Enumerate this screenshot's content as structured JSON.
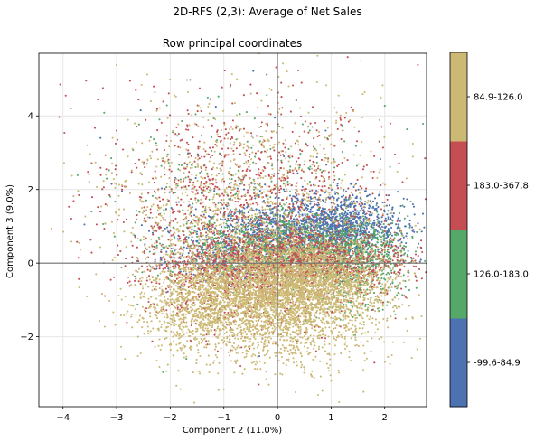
{
  "figure": {
    "suptitle": "2D-RFS (2,3): Average of Net Sales"
  },
  "chart_data": {
    "type": "scatter",
    "title": "Row principal coordinates",
    "xlabel": "Component 2 (11.0%)",
    "ylabel": "Component 3 (9.0%)",
    "xlim": [
      -4.45,
      2.78
    ],
    "ylim": [
      -3.9,
      5.7
    ],
    "xticks": [
      -4,
      -3,
      -2,
      -1,
      0,
      1,
      2
    ],
    "yticks": [
      -2,
      0,
      2,
      4
    ],
    "xtick_labels": [
      "−4",
      "−3",
      "−2",
      "−1",
      "0",
      "1",
      "2"
    ],
    "ytick_labels": [
      "−2",
      "0",
      "2",
      "4"
    ],
    "grid": true,
    "reference_lines": {
      "x": 0,
      "y": 0
    },
    "colorbar": {
      "position": "right",
      "segments": [
        {
          "label": "-99.6-84.9",
          "color": "#4c72b0"
        },
        {
          "label": "126.0-183.0",
          "color": "#55a868"
        },
        {
          "label": "183.0-367.8",
          "color": "#c44e52"
        },
        {
          "label": "84.9-126.0",
          "color": "#ccb974"
        }
      ]
    },
    "series": [
      {
        "class": "-99.6-84.9",
        "color": "#4c72b0",
        "points": [
          [
            -0.45,
            5.22
          ],
          [
            -0.2,
            5.12
          ],
          [
            0.35,
            4.42
          ],
          [
            -1.15,
            4.25
          ],
          [
            -2.55,
            4.15
          ],
          [
            -0.05,
            3.95
          ],
          [
            0.9,
            3.6
          ],
          [
            -3.3,
            3.4
          ],
          [
            0.12,
            2.9
          ],
          [
            0.6,
            2.55
          ],
          [
            -2.9,
            1.95
          ],
          [
            -1.55,
            1.3
          ],
          [
            -3.6,
            1.05
          ],
          [
            2.35,
            0.05
          ],
          [
            1.9,
            -1.3
          ]
        ],
        "clusters": [
          {
            "cx": 0.45,
            "cy": 0.9,
            "sx": 0.95,
            "sy": 0.42,
            "n": 1400
          },
          {
            "cx": 1.3,
            "cy": 1.05,
            "sx": 0.45,
            "sy": 0.45,
            "n": 500
          },
          {
            "cx": -1.1,
            "cy": 0.2,
            "sx": 0.55,
            "sy": 0.35,
            "n": 280
          },
          {
            "cx": -0.5,
            "cy": 1.6,
            "sx": 1.4,
            "sy": 1.3,
            "n": 40
          }
        ]
      },
      {
        "class": "126.0-183.0",
        "color": "#55a868",
        "points": [
          [
            -1.3,
            4.5
          ],
          [
            -0.7,
            4.05
          ],
          [
            -2.2,
            3.9
          ],
          [
            0.65,
            3.7
          ],
          [
            -3.1,
            2.85
          ],
          [
            -1.85,
            2.55
          ],
          [
            -2.65,
            1.1
          ],
          [
            2.25,
            -0.6
          ],
          [
            2.05,
            -1.05
          ],
          [
            -1.7,
            -2.6
          ]
        ],
        "clusters": [
          {
            "cx": 0.3,
            "cy": 0.35,
            "sx": 1.05,
            "sy": 0.42,
            "n": 1200
          },
          {
            "cx": 1.55,
            "cy": 0.2,
            "sx": 0.4,
            "sy": 0.55,
            "n": 380
          },
          {
            "cx": -0.6,
            "cy": 1.7,
            "sx": 1.3,
            "sy": 1.35,
            "n": 260
          },
          {
            "cx": 1.4,
            "cy": -0.6,
            "sx": 0.45,
            "sy": 0.5,
            "n": 150
          }
        ]
      },
      {
        "class": "183.0-367.8",
        "color": "#c44e52",
        "points": [
          [
            -4.05,
            4.85
          ],
          [
            -3.95,
            4.55
          ],
          [
            -2.75,
            4.95
          ],
          [
            -1.45,
            4.75
          ],
          [
            -3.35,
            4.45
          ],
          [
            -3.0,
            3.6
          ],
          [
            -2.9,
            2.0
          ],
          [
            -3.3,
            1.4
          ],
          [
            0.45,
            4.9
          ],
          [
            -0.5,
            4.85
          ],
          [
            1.6,
            2.55
          ],
          [
            -0.35,
            -3.3
          ],
          [
            2.2,
            -1.5
          ]
        ],
        "clusters": [
          {
            "cx": 0.2,
            "cy": 0.05,
            "sx": 1.15,
            "sy": 0.45,
            "n": 1600
          },
          {
            "cx": -0.55,
            "cy": 1.85,
            "sx": 1.3,
            "sy": 1.3,
            "n": 900
          },
          {
            "cx": -0.6,
            "cy": -0.6,
            "sx": 0.9,
            "sy": 0.8,
            "n": 400
          }
        ]
      },
      {
        "class": "84.9-126.0",
        "color": "#ccb974",
        "points": [
          [
            -3.85,
            4.2
          ],
          [
            -3.7,
            0.55
          ],
          [
            -3.2,
            2.4
          ],
          [
            -3.55,
            3.2
          ],
          [
            -2.25,
            -2.65
          ],
          [
            -1.1,
            -3.45
          ],
          [
            1.0,
            -3.2
          ],
          [
            -2.6,
            -2.0
          ],
          [
            1.6,
            -2.9
          ]
        ],
        "clusters": [
          {
            "cx": -0.1,
            "cy": -0.75,
            "sx": 0.95,
            "sy": 0.7,
            "n": 3500
          },
          {
            "cx": -0.5,
            "cy": 1.3,
            "sx": 1.35,
            "sy": 1.5,
            "n": 1200
          },
          {
            "cx": 0.8,
            "cy": -0.4,
            "sx": 0.65,
            "sy": 0.5,
            "n": 800
          },
          {
            "cx": -1.6,
            "cy": -1.3,
            "sx": 0.55,
            "sy": 0.65,
            "n": 500
          },
          {
            "cx": 0.2,
            "cy": -2.1,
            "sx": 0.9,
            "sy": 0.55,
            "n": 300
          }
        ]
      }
    ]
  }
}
